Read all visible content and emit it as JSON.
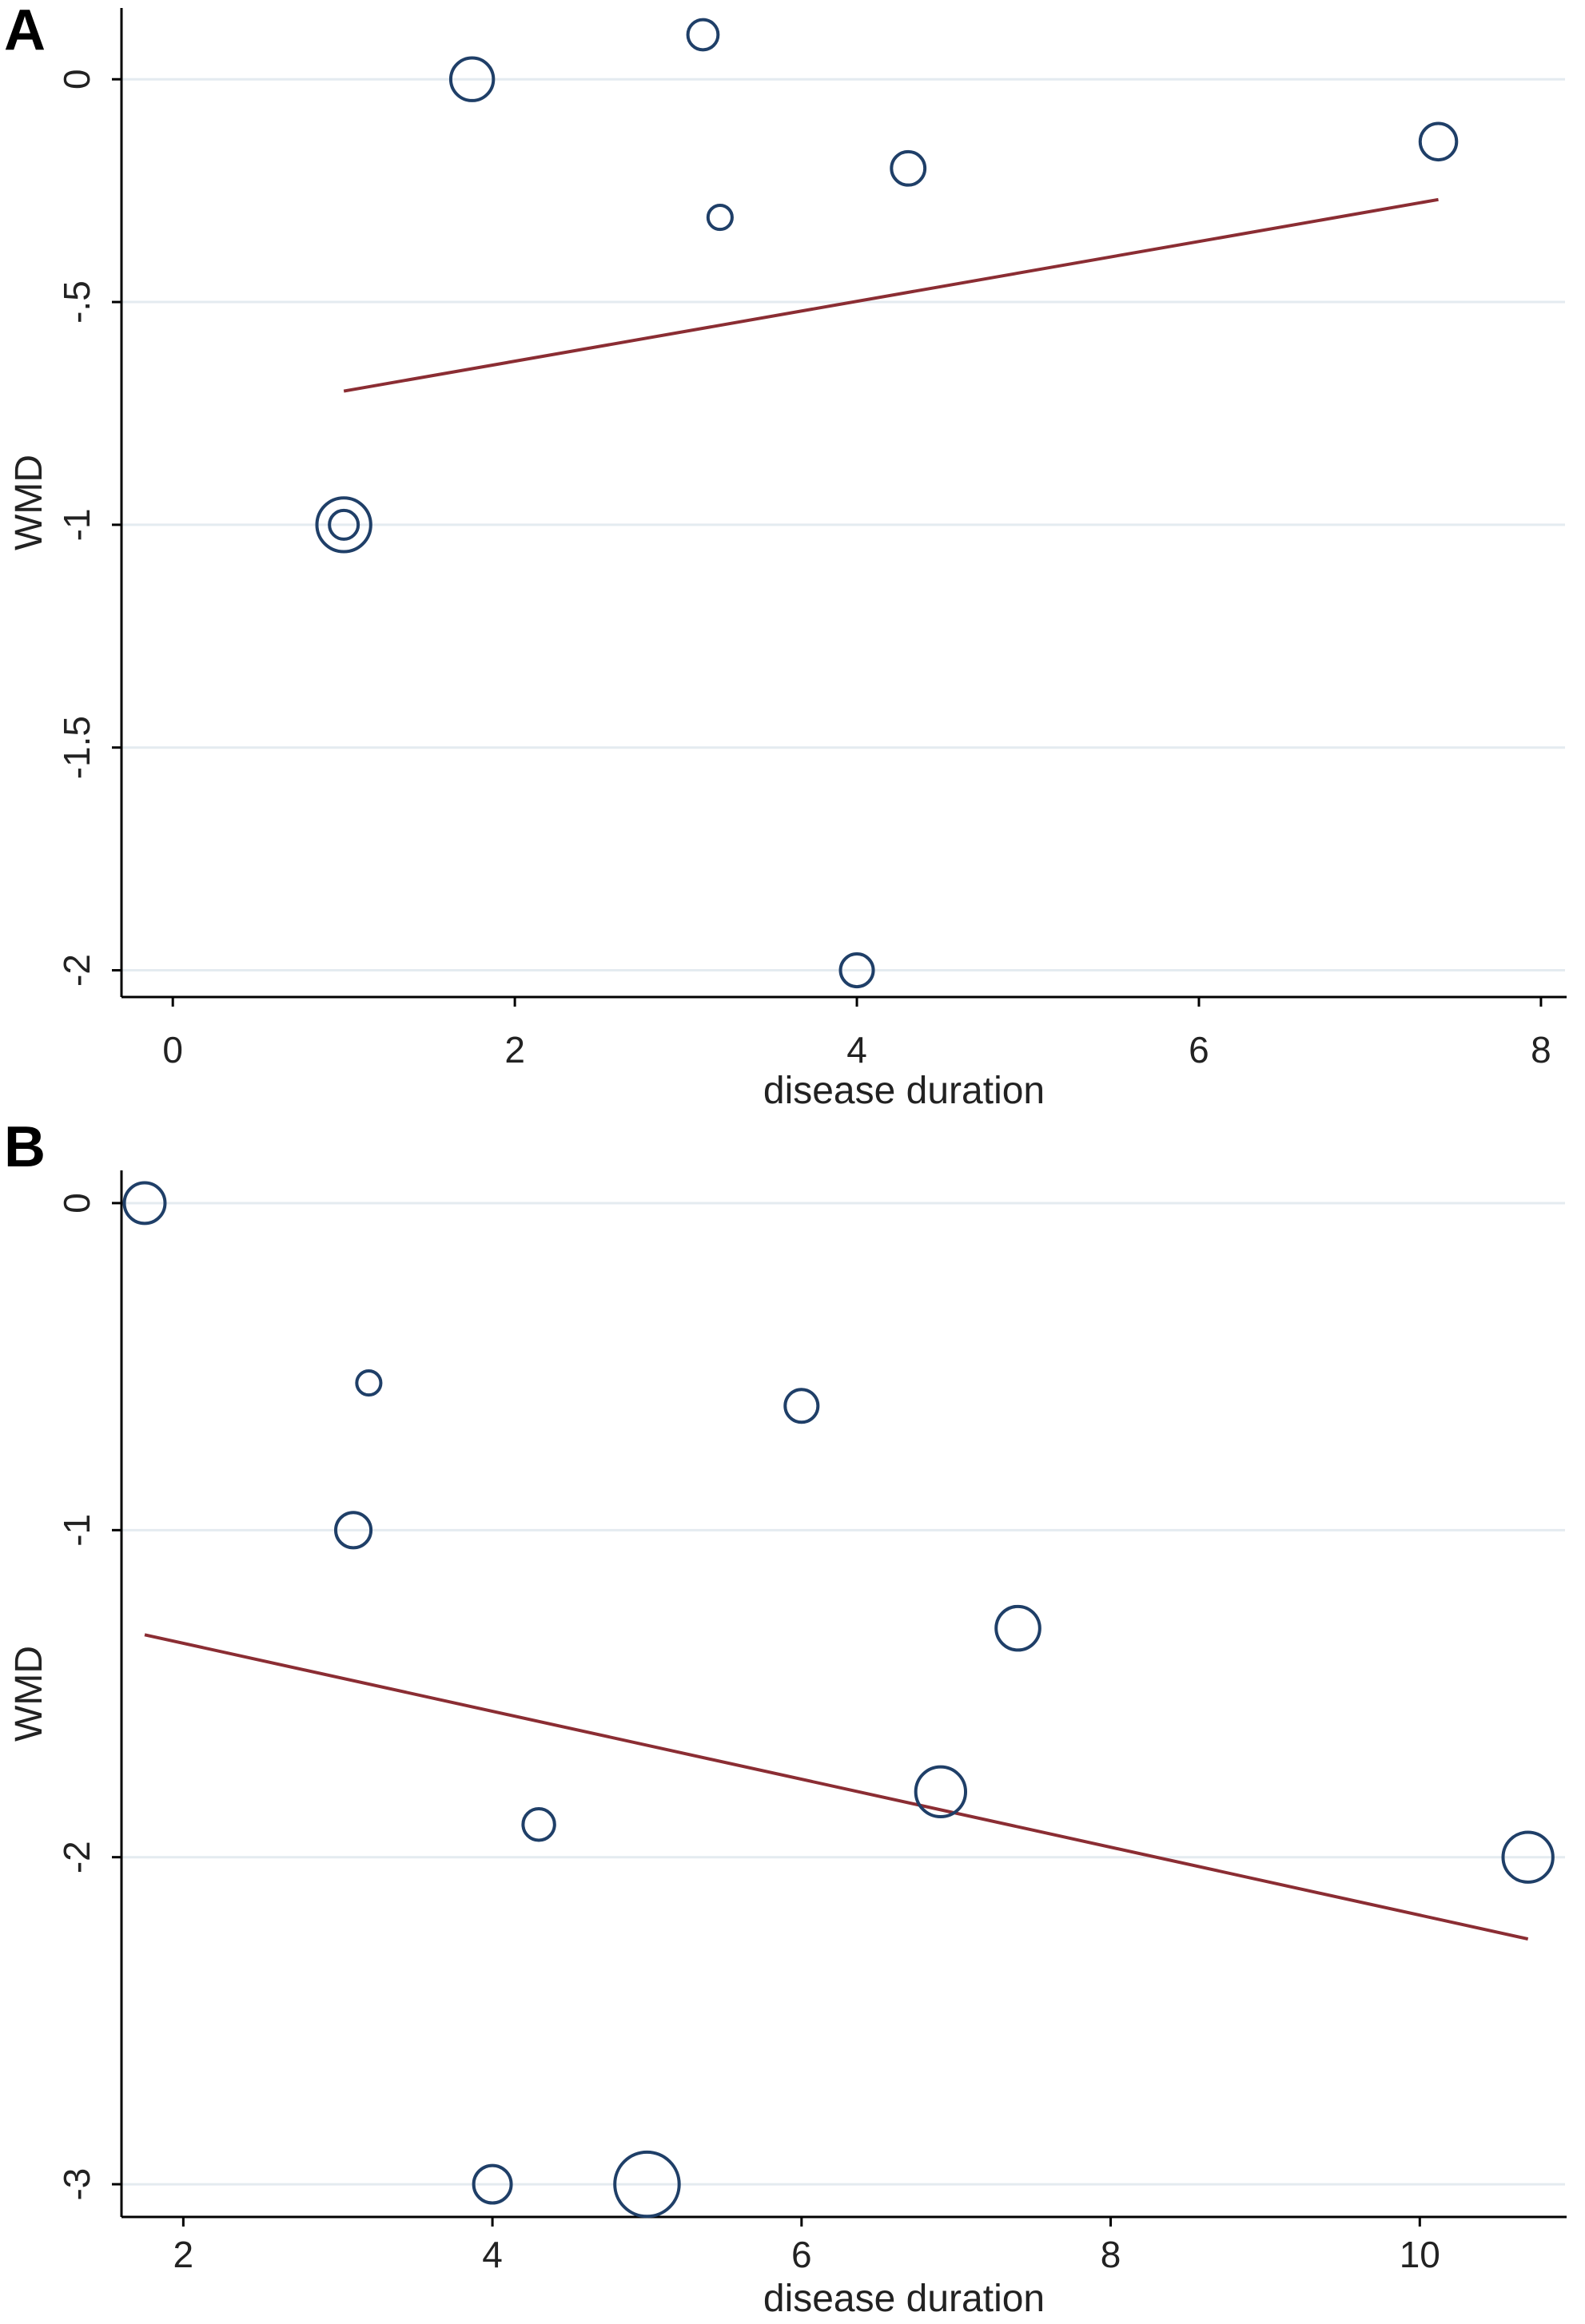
{
  "chart_data": [
    {
      "panel_label": "A",
      "type": "scatter",
      "title": "",
      "xlabel": "disease duration",
      "ylabel": "WMD",
      "xlim": [
        -0.3,
        8.15
      ],
      "ylim": [
        -2.06,
        0.16
      ],
      "xticks": [
        0,
        2,
        4,
        6,
        8
      ],
      "xtick_labels": [
        "0",
        "2",
        "4",
        "6",
        "8"
      ],
      "yticks": [
        0,
        -0.5,
        -1,
        -1.5,
        -2
      ],
      "ytick_labels": [
        "0",
        "-.5",
        "-1",
        "-1.5",
        "-2"
      ],
      "grid": true,
      "points": [
        {
          "x": 1.75,
          "y": 0,
          "weight": 2.2
        },
        {
          "x": 3.1,
          "y": 0.1,
          "weight": 1.1
        },
        {
          "x": 3.2,
          "y": -0.31,
          "weight": 0.7
        },
        {
          "x": 4.3,
          "y": -0.2,
          "weight": 1.35
        },
        {
          "x": 7.4,
          "y": -0.14,
          "weight": 1.6
        },
        {
          "x": 1.0,
          "y": -1.0,
          "weight": 3.5
        },
        {
          "x": 1.0,
          "y": -1.0,
          "weight": 1.0
        },
        {
          "x": 4.0,
          "y": -2.0,
          "weight": 1.3
        }
      ],
      "fit_line": {
        "x": [
          1.0,
          7.4
        ],
        "y": [
          -0.7,
          -0.27
        ]
      },
      "colors": {
        "marker": "#1f3f68",
        "fit": "#8b2d33",
        "grid": "#e4ebf0",
        "axis": "#000000"
      }
    },
    {
      "panel_label": "B",
      "type": "scatter",
      "title": "",
      "xlabel": "disease duration",
      "ylabel": "WMD",
      "xlim": [
        1.6,
        10.95
      ],
      "ylim": [
        -3.1,
        0.1
      ],
      "xticks": [
        2,
        4,
        6,
        8,
        10
      ],
      "xtick_labels": [
        "2",
        "4",
        "6",
        "8",
        "10"
      ],
      "yticks": [
        0,
        -1,
        -2,
        -3
      ],
      "ytick_labels": [
        "0",
        "-1",
        "-2",
        "-3"
      ],
      "grid": true,
      "points": [
        {
          "x": 1.75,
          "y": 0,
          "weight": 2.0
        },
        {
          "x": 3.2,
          "y": -0.55,
          "weight": 0.7
        },
        {
          "x": 6.0,
          "y": -0.62,
          "weight": 1.3
        },
        {
          "x": 3.1,
          "y": -1.0,
          "weight": 1.5
        },
        {
          "x": 7.4,
          "y": -1.3,
          "weight": 2.3
        },
        {
          "x": 6.9,
          "y": -1.8,
          "weight": 3.0
        },
        {
          "x": 4.3,
          "y": -1.9,
          "weight": 1.2
        },
        {
          "x": 10.7,
          "y": -2.0,
          "weight": 3.0
        },
        {
          "x": 4.0,
          "y": -3.0,
          "weight": 1.7
        },
        {
          "x": 5.0,
          "y": -3.0,
          "weight": 5.0
        }
      ],
      "fit_line": {
        "x": [
          1.75,
          10.7
        ],
        "y": [
          -1.32,
          -2.25
        ]
      },
      "colors": {
        "marker": "#1f3f68",
        "fit": "#8b2d33",
        "grid": "#e4ebf0",
        "axis": "#000000"
      }
    }
  ]
}
